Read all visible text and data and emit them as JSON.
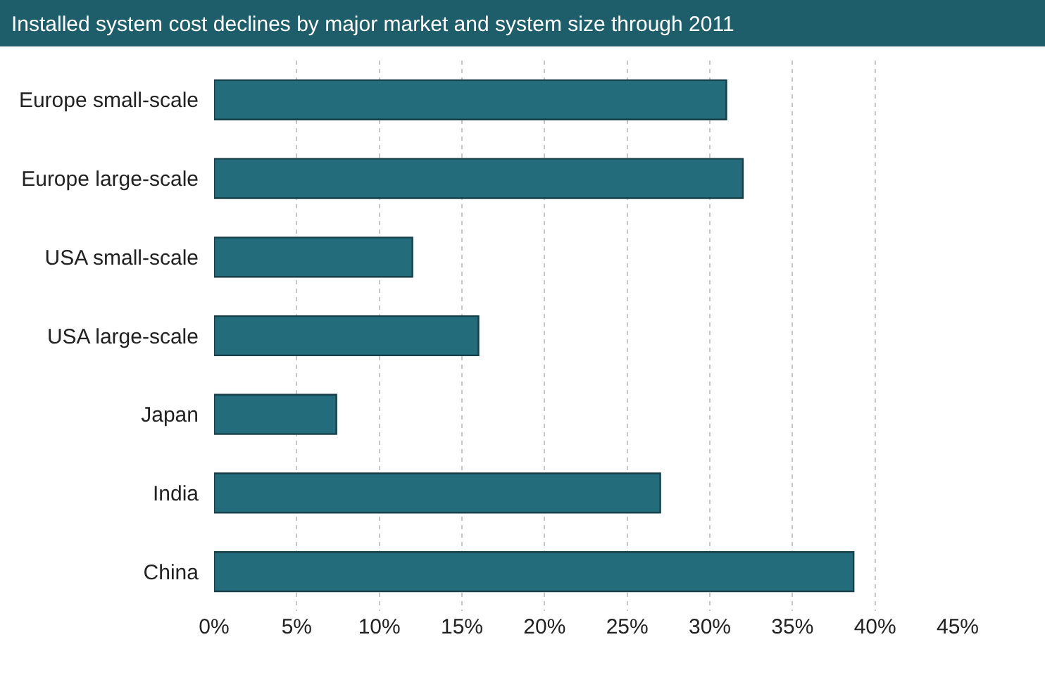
{
  "chart_data": {
    "type": "bar",
    "orientation": "horizontal",
    "title": "Installed system cost declines by major market and system size through 2011",
    "categories": [
      "Europe small-scale",
      "Europe large-scale",
      "USA small-scale",
      "USA large-scale",
      "Japan",
      "India",
      "China"
    ],
    "values": [
      31,
      32,
      12,
      16,
      7.4,
      27,
      38.7
    ],
    "color": "#236c7c",
    "xlim": [
      0,
      45
    ],
    "xticks": [
      {
        "value": 0,
        "label": "0%"
      },
      {
        "value": 5,
        "label": "5%"
      },
      {
        "value": 10,
        "label": "10%"
      },
      {
        "value": 15,
        "label": "15%"
      },
      {
        "value": 20,
        "label": "20%"
      },
      {
        "value": 25,
        "label": "25%"
      },
      {
        "value": 30,
        "label": "30%"
      },
      {
        "value": 35,
        "label": "35%"
      },
      {
        "value": 40,
        "label": "40%"
      },
      {
        "value": 45,
        "label": "45%"
      }
    ],
    "grid": "x"
  }
}
